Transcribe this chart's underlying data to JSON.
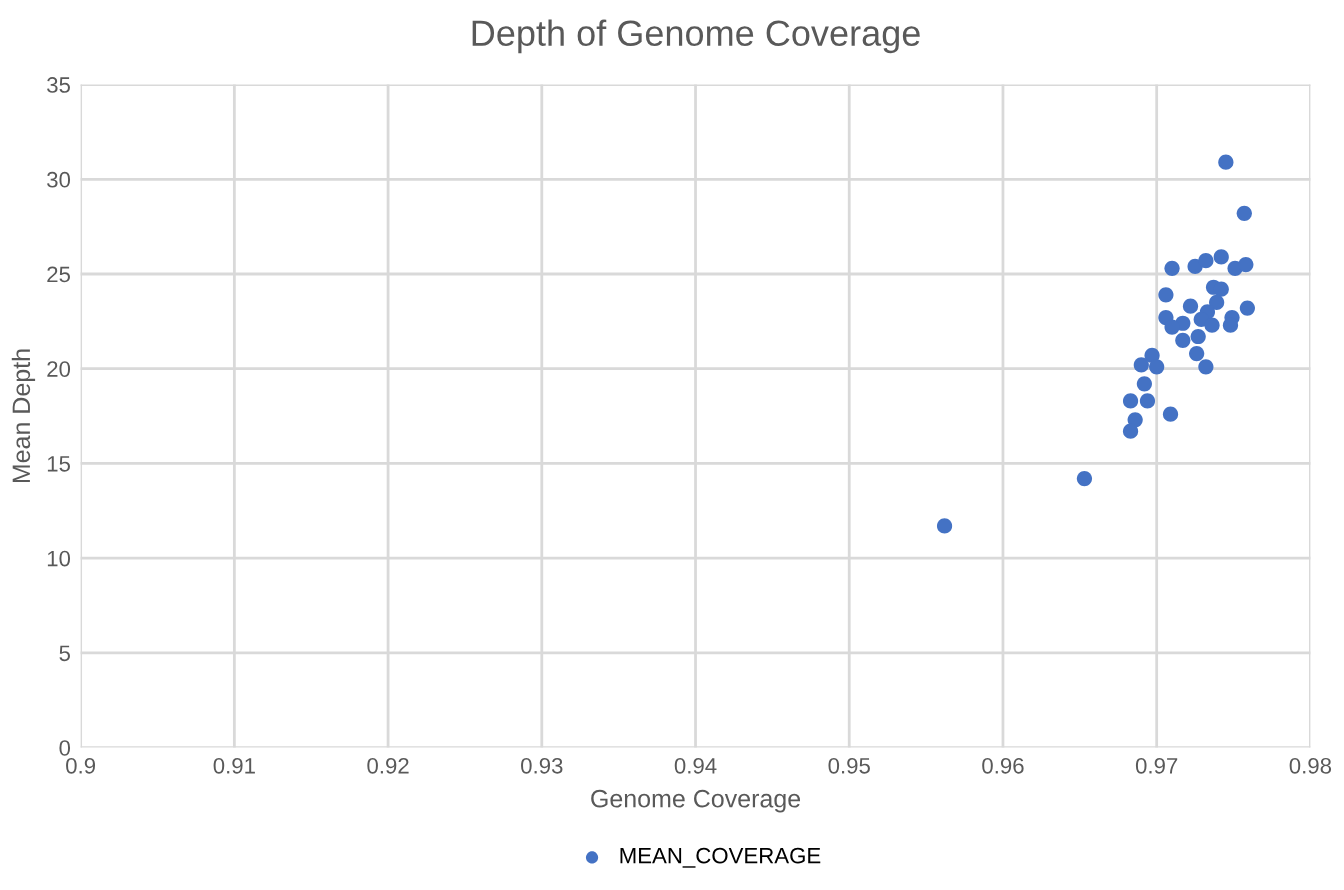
{
  "chart_data": {
    "type": "scatter",
    "title": "Depth of Genome Coverage",
    "xlabel": "Genome Coverage",
    "ylabel": "Mean Depth",
    "series": [
      {
        "name": "MEAN_COVERAGE",
        "color": "#4472c4",
        "x": [
          0.9745,
          0.9757,
          0.971,
          0.9725,
          0.9732,
          0.9739,
          0.9742,
          0.9751,
          0.9758,
          0.9706,
          0.9737,
          0.9742,
          0.9722,
          0.9739,
          0.9759,
          0.9733,
          0.9706,
          0.9717,
          0.971,
          0.9729,
          0.9749,
          0.9748,
          0.9736,
          0.9724,
          0.9719,
          0.9717,
          0.9727,
          0.9726,
          0.9732,
          0.9697,
          0.969,
          0.97,
          0.9692,
          0.9683,
          0.9694,
          0.9709,
          0.9686,
          0.9683,
          0.9653,
          0.9562
        ],
        "values": [
          30.9,
          28.2,
          25.3,
          25.4,
          25.7,
          null,
          25.9,
          25.3,
          25.5,
          23.9,
          24.3,
          24.2,
          23.3,
          23.5,
          23.2,
          23.0,
          22.7,
          22.4,
          22.2,
          22.6,
          22.7,
          22.3,
          22.3,
          null,
          null,
          21.5,
          21.7,
          20.8,
          20.1,
          20.7,
          20.2,
          20.1,
          19.2,
          18.3,
          18.3,
          17.6,
          17.3,
          16.7,
          14.2,
          11.7
        ]
      }
    ],
    "xlim": [
      0.9,
      0.98
    ],
    "xticks": [
      {
        "value": 0.9,
        "label": "0.9"
      },
      0.91,
      0.92,
      0.93,
      0.94,
      0.95,
      0.96,
      0.97,
      0.98
    ],
    "ylim": [
      0,
      35
    ],
    "yticks": [
      0,
      5,
      10,
      15,
      20,
      25,
      30,
      35
    ],
    "grid": true,
    "legend": "bottom",
    "marker": "circle"
  }
}
